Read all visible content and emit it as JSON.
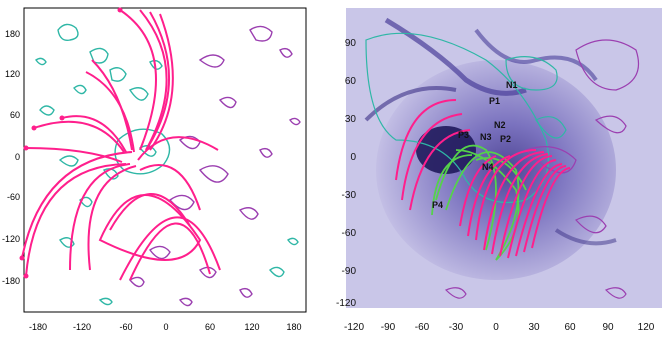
{
  "left_panel": {
    "y_ticks": [
      "180",
      "120",
      "60",
      "0",
      "-60",
      "-120",
      "-180"
    ],
    "x_ticks": [
      "-180",
      "-120",
      "-60",
      "0",
      "60",
      "120",
      "180"
    ]
  },
  "right_panel": {
    "y_ticks": [
      "90",
      "60",
      "30",
      "0",
      "-30",
      "-60",
      "-90",
      "-120"
    ],
    "x_ticks": [
      "-120",
      "-90",
      "-60",
      "-30",
      "0",
      "30",
      "60",
      "90",
      "120"
    ],
    "labels": {
      "n1": "N1",
      "p1": "P1",
      "n2": "N2",
      "p3": "P3",
      "n3": "N3",
      "p2": "P2",
      "n4": "N4",
      "p4": "P4"
    }
  },
  "colors": {
    "field_lines": "#ff1f8c",
    "positive_contour": "#2fb7a6",
    "negative_contour": "#9b3fb0",
    "green_loops": "#55d24a",
    "background_euv": "#c9c6e8"
  }
}
